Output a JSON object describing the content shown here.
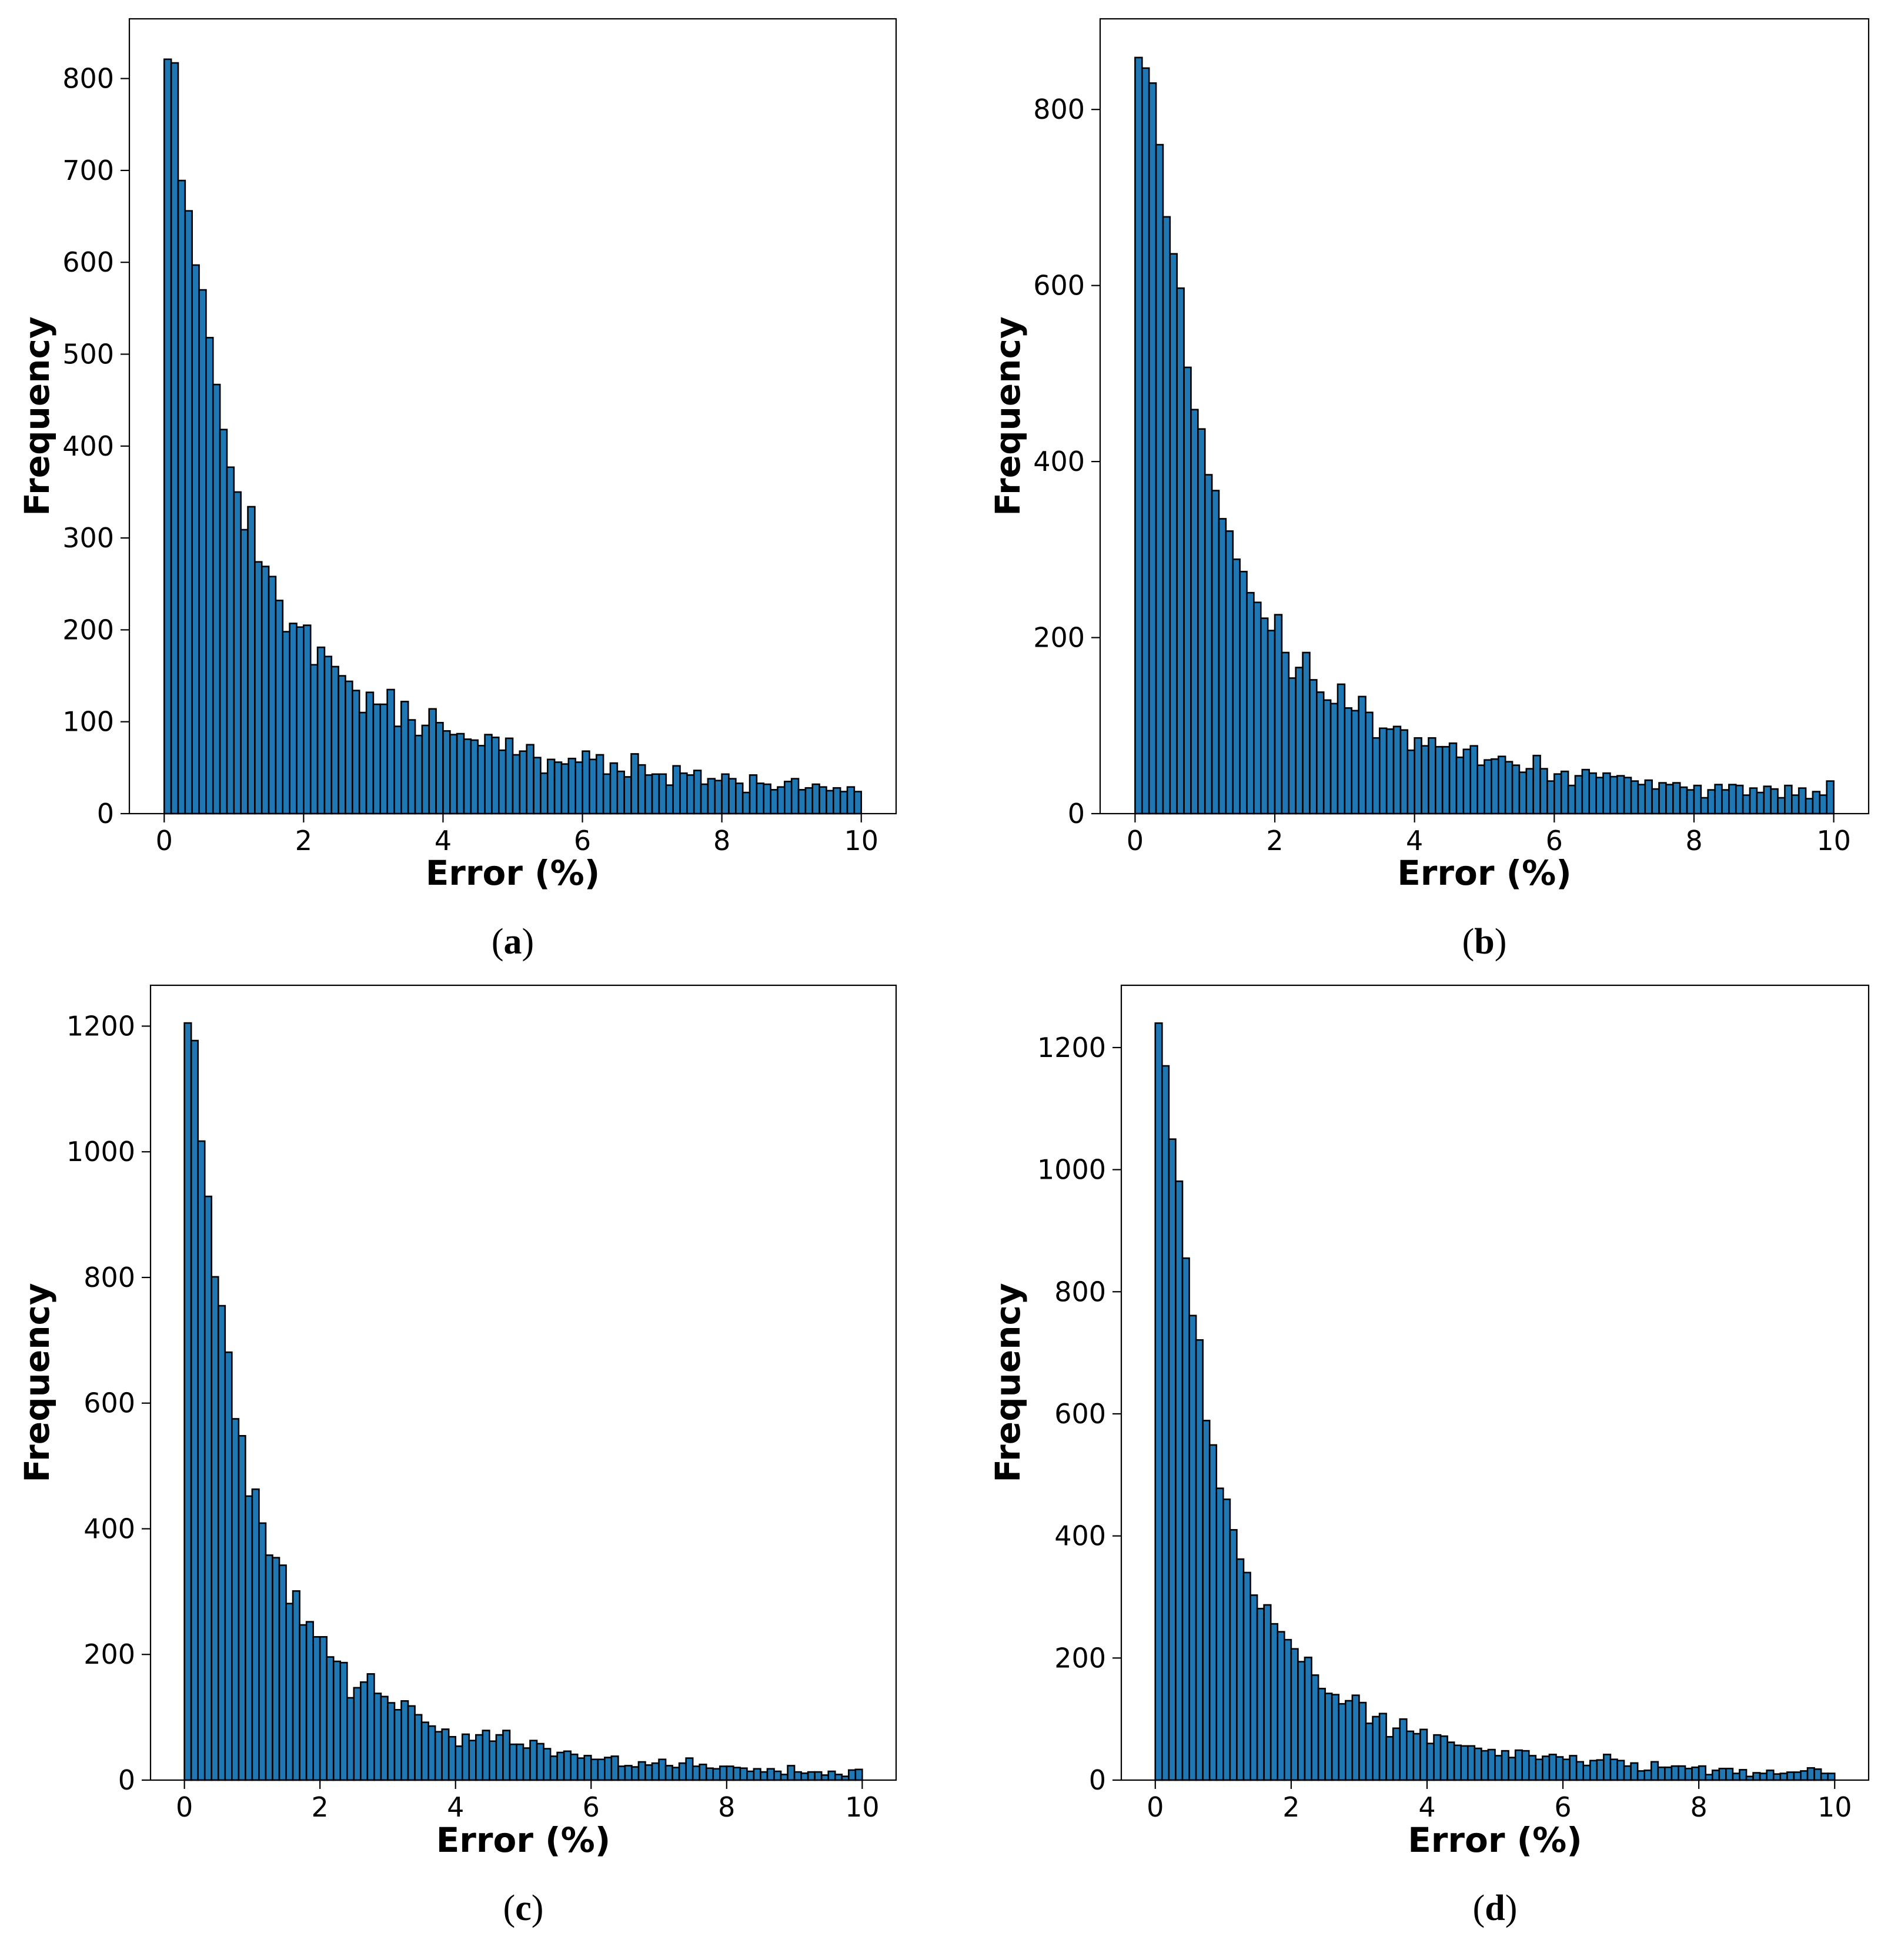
{
  "colors": {
    "bar_fill": "#1f77b4",
    "bar_edge": "#000000"
  },
  "chart_data": [
    {
      "type": "bar",
      "caption": "(a)",
      "xlabel": "Error (%)",
      "ylabel": "Frequency",
      "bin_start": 0,
      "bin_width": 0.1,
      "xlim": [
        -0.5,
        10.5
      ],
      "ylim": [
        0,
        865
      ],
      "xticks": [
        0,
        2,
        4,
        6,
        8,
        10
      ],
      "yticks": [
        0,
        100,
        200,
        300,
        400,
        500,
        600,
        700,
        800
      ],
      "grid": false,
      "values": [
        821,
        817,
        689,
        656,
        597,
        570,
        518,
        467,
        418,
        377,
        350,
        309,
        334,
        274,
        269,
        258,
        232,
        198,
        207,
        203,
        205,
        162,
        181,
        171,
        160,
        150,
        144,
        134,
        110,
        132,
        119,
        119,
        135,
        95,
        122,
        102,
        85,
        96,
        114,
        99,
        90,
        86,
        87,
        81,
        80,
        74,
        86,
        83,
        69,
        82,
        64,
        68,
        75,
        61,
        44,
        59,
        56,
        54,
        60,
        56,
        68,
        59,
        64,
        43,
        55,
        46,
        40,
        65,
        53,
        42,
        43,
        43,
        31,
        52,
        44,
        42,
        47,
        32,
        38,
        36,
        43,
        38,
        33,
        23,
        42,
        33,
        32,
        26,
        29,
        35,
        38,
        26,
        28,
        32,
        29,
        25,
        28,
        24,
        29,
        24
      ]
    },
    {
      "type": "bar",
      "caption": "(b)",
      "xlabel": "Error (%)",
      "ylabel": "Frequency",
      "bin_start": 0,
      "bin_width": 0.1,
      "xlim": [
        -0.5,
        10.5
      ],
      "ylim": [
        0,
        903
      ],
      "xticks": [
        0,
        2,
        4,
        6,
        8,
        10
      ],
      "yticks": [
        0,
        200,
        400,
        600,
        800
      ],
      "grid": false,
      "values": [
        859,
        847,
        830,
        760,
        678,
        636,
        597,
        507,
        459,
        437,
        385,
        367,
        335,
        321,
        289,
        275,
        251,
        240,
        222,
        208,
        226,
        183,
        154,
        166,
        183,
        152,
        138,
        129,
        125,
        147,
        120,
        117,
        133,
        115,
        86,
        97,
        96,
        99,
        95,
        72,
        86,
        77,
        86,
        76,
        76,
        80,
        64,
        73,
        77,
        55,
        61,
        62,
        65,
        59,
        55,
        47,
        51,
        66,
        51,
        37,
        45,
        48,
        32,
        43,
        50,
        46,
        41,
        46,
        42,
        43,
        41,
        37,
        33,
        38,
        28,
        35,
        33,
        35,
        30,
        27,
        32,
        18,
        27,
        33,
        27,
        33,
        32,
        21,
        29,
        24,
        31,
        28,
        18,
        32,
        21,
        29,
        17,
        25,
        21,
        37
      ]
    },
    {
      "type": "bar",
      "caption": "(c)",
      "xlabel": "Error (%)",
      "ylabel": "Frequency",
      "bin_start": 0,
      "bin_width": 0.1,
      "xlim": [
        -0.5,
        10.5
      ],
      "ylim": [
        0,
        1265
      ],
      "xticks": [
        0,
        2,
        4,
        6,
        8,
        10
      ],
      "yticks": [
        0,
        200,
        400,
        600,
        800,
        1000,
        1200
      ],
      "grid": false,
      "values": [
        1205,
        1177,
        1017,
        929,
        801,
        755,
        681,
        575,
        548,
        452,
        463,
        409,
        358,
        354,
        342,
        281,
        301,
        247,
        252,
        228,
        228,
        196,
        189,
        187,
        131,
        147,
        156,
        169,
        138,
        133,
        123,
        112,
        126,
        118,
        104,
        92,
        86,
        77,
        81,
        69,
        54,
        73,
        63,
        72,
        79,
        62,
        72,
        79,
        57,
        57,
        51,
        63,
        58,
        50,
        38,
        44,
        46,
        41,
        35,
        39,
        33,
        33,
        36,
        38,
        22,
        23,
        21,
        29,
        24,
        27,
        33,
        23,
        20,
        27,
        35,
        22,
        25,
        19,
        18,
        22,
        22,
        20,
        19,
        14,
        18,
        13,
        18,
        14,
        9,
        23,
        13,
        11,
        13,
        13,
        8,
        14,
        9,
        6,
        16,
        17
      ]
    },
    {
      "type": "bar",
      "caption": "(d)",
      "xlabel": "Error (%)",
      "ylabel": "Frequency",
      "bin_start": 0,
      "bin_width": 0.1,
      "xlim": [
        -0.5,
        10.5
      ],
      "ylim": [
        0,
        1302
      ],
      "xticks": [
        0,
        2,
        4,
        6,
        8,
        10
      ],
      "yticks": [
        0,
        200,
        400,
        600,
        800,
        1000,
        1200
      ],
      "grid": false,
      "values": [
        1240,
        1170,
        1050,
        981,
        855,
        761,
        721,
        589,
        549,
        478,
        460,
        410,
        362,
        340,
        303,
        281,
        287,
        256,
        243,
        230,
        215,
        194,
        201,
        172,
        150,
        142,
        140,
        125,
        130,
        139,
        127,
        93,
        104,
        109,
        71,
        85,
        100,
        80,
        76,
        83,
        60,
        74,
        72,
        62,
        57,
        56,
        56,
        52,
        48,
        50,
        40,
        48,
        37,
        49,
        48,
        40,
        34,
        39,
        42,
        38,
        34,
        40,
        30,
        24,
        32,
        33,
        42,
        34,
        32,
        23,
        28,
        15,
        16,
        30,
        21,
        21,
        23,
        23,
        19,
        21,
        23,
        9,
        16,
        19,
        19,
        11,
        17,
        6,
        12,
        11,
        16,
        10,
        11,
        13,
        13,
        15,
        20,
        18,
        11,
        11
      ]
    }
  ]
}
